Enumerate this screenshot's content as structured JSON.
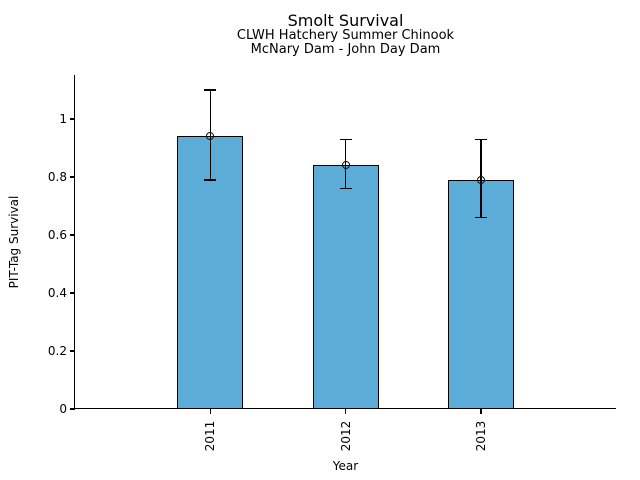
{
  "chart_data": {
    "type": "bar",
    "title": "Smolt Survival",
    "subtitle": [
      "CLWH Hatchery Summer Chinook",
      "McNary Dam - John Day Dam"
    ],
    "categories": [
      "2011",
      "2012",
      "2013"
    ],
    "values": [
      0.94,
      0.84,
      0.79
    ],
    "error_low": [
      0.79,
      0.76,
      0.66
    ],
    "error_high": [
      1.1,
      0.93,
      0.93
    ],
    "xlabel": "Year",
    "ylabel": "PIT-Tag Survival",
    "ylim": [
      0,
      1.152
    ],
    "yticks": [
      0,
      0.2,
      0.4,
      0.6,
      0.8,
      1
    ],
    "ytick_labels": [
      "0",
      "0.2",
      "0.4",
      "0.6",
      "0.8",
      "1"
    ],
    "grid": false,
    "legend": false,
    "bar_color": "#5badd7",
    "edge_color": "#000000",
    "marker": "open-circle",
    "marker_position": "bar-top"
  }
}
